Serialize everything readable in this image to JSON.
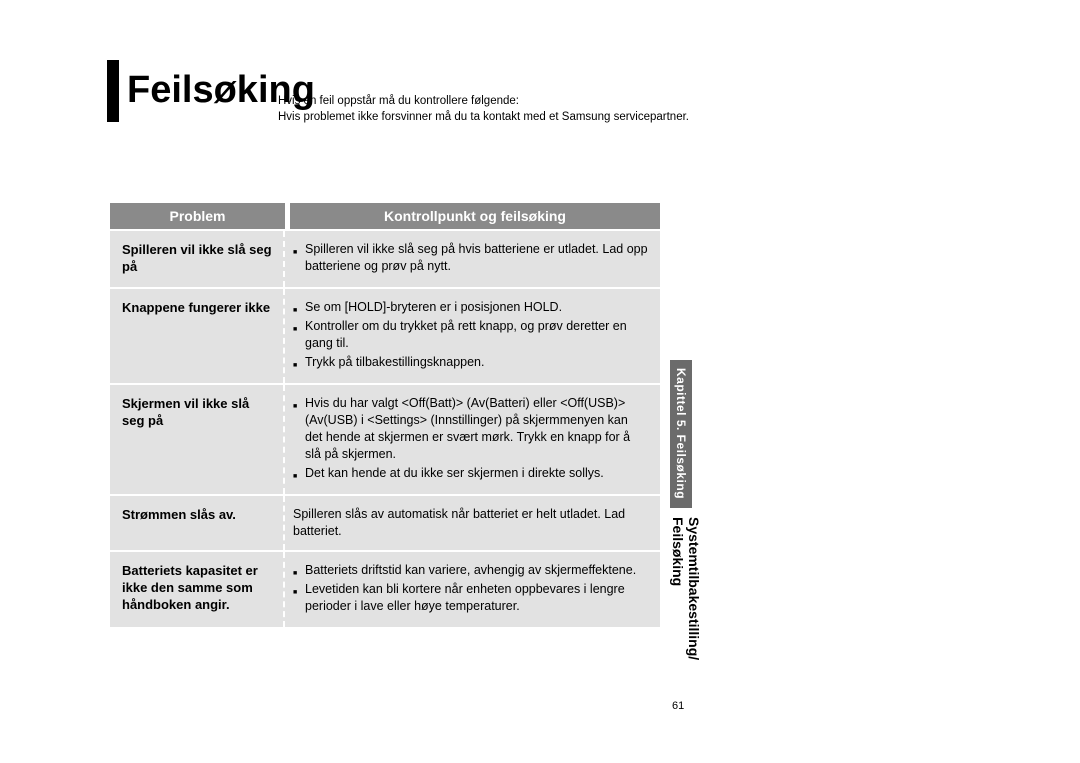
{
  "title": "Feilsøking",
  "intro_line1": "Hvis en feil oppstår må du kontrollere følgende:",
  "intro_line2": "Hvis problemet ikke forsvinner må du ta kontakt med et Samsung servicepartner.",
  "table": {
    "header_left": "Problem",
    "header_right": "Kontrollpunkt og feilsøking",
    "rows": [
      {
        "problem": "Spilleren vil ikke slå seg på",
        "items": [
          "Spilleren vil ikke slå seg på hvis batteriene er utladet. Lad opp batteriene og prøv på nytt."
        ]
      },
      {
        "problem": "Knappene fungerer ikke",
        "items": [
          "Se om [HOLD]-bryteren er i posisjonen HOLD.",
          "Kontroller om du trykket på rett knapp, og prøv deretter en gang til.",
          "Trykk på tilbakestillingsknappen."
        ]
      },
      {
        "problem": "Skjermen vil ikke slå seg på",
        "items": [
          "Hvis du har valgt <Off(Batt)> (Av(Batteri) eller <Off(USB)> (Av(USB) i <Settings> (Innstillinger) på skjermmenyen kan det hende at skjermen er svært mørk. Trykk en knapp for å slå på skjermen.",
          "Det kan hende at du ikke ser skjermen i direkte sollys."
        ]
      },
      {
        "problem": "Strømmen slås av.",
        "plain": "Spilleren slås av automatisk når batteriet er helt utladet. Lad batteriet."
      },
      {
        "problem": "Batteriets kapasitet er ikke den samme som håndboken angir.",
        "items": [
          "Batteriets driftstid kan variere, avhengig av skjermeffektene.",
          "Levetiden kan bli kortere når enheten oppbevares i lengre perioder i lave eller høye temperaturer."
        ]
      }
    ]
  },
  "side_tab": "Kapittel 5. Feilsøking",
  "side_title_1": "Systemtilbakestilling/",
  "side_title_2": "Feilsøking",
  "page_number": "61",
  "colors": {
    "header_bg": "#8a8a8a",
    "row_bg": "#e2e2e2",
    "tab_bg": "#6b6b6b"
  }
}
